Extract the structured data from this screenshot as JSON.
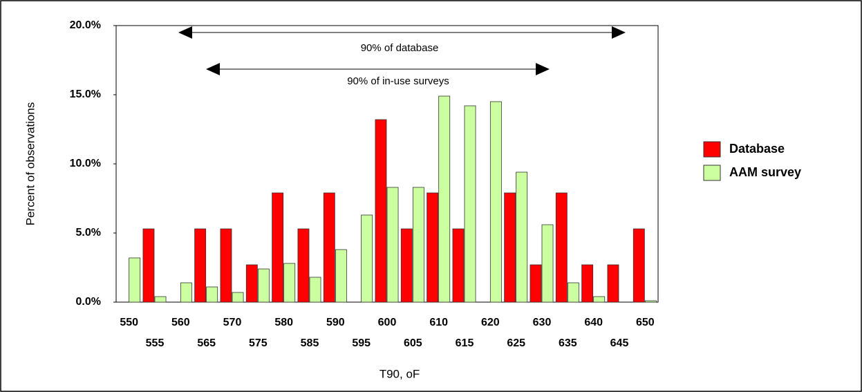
{
  "chart_data": {
    "type": "bar",
    "categories": [
      "550",
      "555",
      "560",
      "565",
      "570",
      "575",
      "580",
      "585",
      "590",
      "595",
      "600",
      "605",
      "610",
      "615",
      "620",
      "625",
      "630",
      "635",
      "640",
      "645",
      "650"
    ],
    "series": [
      {
        "name": "Database",
        "color": "#ff0000",
        "values": [
          0,
          5.3,
          0,
          5.3,
          5.3,
          2.7,
          7.9,
          5.3,
          7.9,
          0,
          13.2,
          5.3,
          7.9,
          5.3,
          0,
          7.9,
          2.7,
          7.9,
          2.7,
          2.7,
          5.3
        ]
      },
      {
        "name": "AAM survey",
        "color": "#ccffa0",
        "values": [
          3.2,
          0.4,
          1.4,
          1.1,
          0.7,
          2.4,
          2.8,
          1.8,
          3.8,
          6.3,
          8.3,
          8.3,
          14.9,
          14.2,
          14.5,
          9.4,
          5.6,
          1.4,
          0.4,
          0,
          0.1
        ]
      }
    ],
    "ylim": [
      0,
      20
    ],
    "yticks": [
      {
        "value": 0,
        "label": "0.0%"
      },
      {
        "value": 5,
        "label": "5.0%"
      },
      {
        "value": 10,
        "label": "10.0%"
      },
      {
        "value": 15,
        "label": "15.0%"
      },
      {
        "value": 20,
        "label": "20.0%"
      }
    ],
    "x_label": "T90, oF",
    "y_label": "Percent of observations",
    "annotations": [
      "90% of database",
      "90% of in-use surveys"
    ],
    "legend": "right"
  }
}
